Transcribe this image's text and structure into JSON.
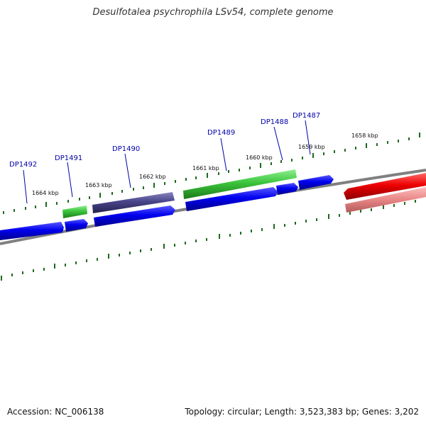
{
  "title": "Desulfotalea psychrophila LSv54, complete genome",
  "footer": {
    "accession": "Accession: NC_006138",
    "summary": "Topology: circular; Length: 3,523,383 bp; Genes: 3,202"
  },
  "colors": {
    "forward_cds": "#0000dd",
    "forward_rna": "#2ea02e",
    "forward_pseudo": "#3d3875",
    "reverse_cds": "#dd0000",
    "reverse_pale": "#e77f80",
    "backbone": "#808080",
    "tick": "#1d6b1d",
    "label": "#0000aa"
  },
  "scale_labels": [
    "1664 kbp",
    "1663 kbp",
    "1662 kbp",
    "1661 kbp",
    "1660 kbp",
    "1659 kbp",
    "1658 kbp"
  ],
  "gene_labels": [
    "DP1492",
    "DP1491",
    "DP1490",
    "DP1489",
    "DP1488",
    "DP1487"
  ]
}
